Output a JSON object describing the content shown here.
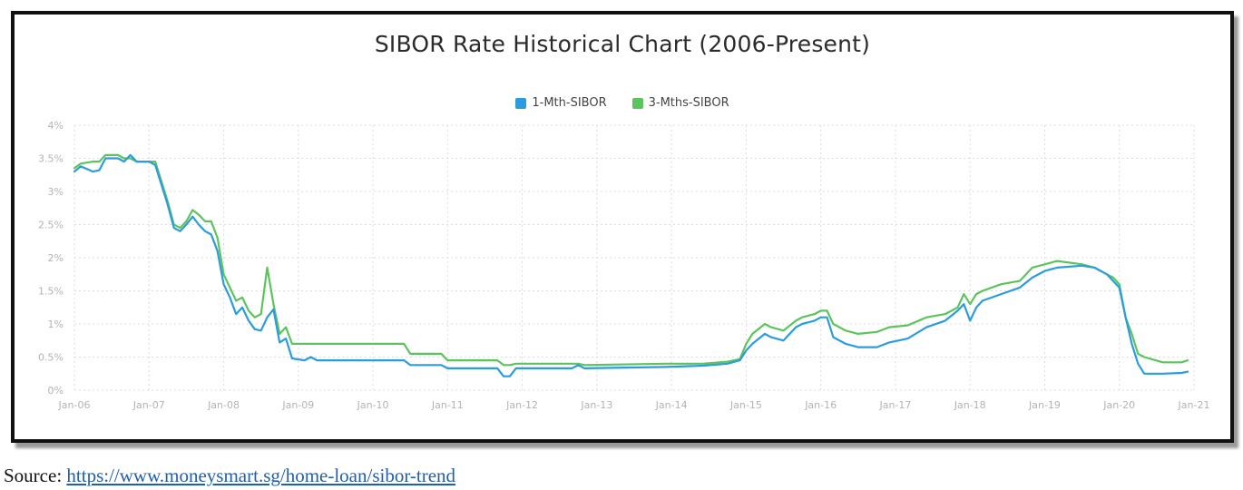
{
  "source": {
    "prefix": "Source: ",
    "link_text": "https://www.moneysmart.sg/home-loan/sibor-trend"
  },
  "chart_data": {
    "type": "line",
    "title": "SIBOR Rate Historical Chart (2006-Present)",
    "xlabel": "",
    "ylabel": "",
    "ylim": [
      0,
      4
    ],
    "xlim": [
      "2006-01",
      "2021-01"
    ],
    "grid": true,
    "legend_position": "top-center",
    "y_ticks": [
      "0%",
      "0.5%",
      "1%",
      "1.5%",
      "2%",
      "2.5%",
      "3%",
      "3.5%",
      "4%"
    ],
    "x_ticks": [
      "Jan-06",
      "Jan-07",
      "Jan-08",
      "Jan-09",
      "Jan-10",
      "Jan-11",
      "Jan-12",
      "Jan-13",
      "Jan-14",
      "Jan-15",
      "Jan-16",
      "Jan-17",
      "Jan-18",
      "Jan-19",
      "Jan-20",
      "Jan-21"
    ],
    "series": [
      {
        "name": "1-Mth-SIBOR",
        "color": "#2b9cdd",
        "points": [
          [
            "2006-01",
            3.3
          ],
          [
            "2006-02",
            3.38
          ],
          [
            "2006-04",
            3.3
          ],
          [
            "2006-05",
            3.32
          ],
          [
            "2006-06",
            3.5
          ],
          [
            "2006-08",
            3.5
          ],
          [
            "2006-09",
            3.45
          ],
          [
            "2006-10",
            3.55
          ],
          [
            "2006-11",
            3.45
          ],
          [
            "2007-01",
            3.45
          ],
          [
            "2007-02",
            3.4
          ],
          [
            "2007-03",
            3.1
          ],
          [
            "2007-04",
            2.8
          ],
          [
            "2007-05",
            2.45
          ],
          [
            "2007-06",
            2.4
          ],
          [
            "2007-07",
            2.5
          ],
          [
            "2007-08",
            2.62
          ],
          [
            "2007-09",
            2.5
          ],
          [
            "2007-10",
            2.4
          ],
          [
            "2007-11",
            2.35
          ],
          [
            "2007-12",
            2.1
          ],
          [
            "2008-01",
            1.6
          ],
          [
            "2008-02",
            1.4
          ],
          [
            "2008-03",
            1.15
          ],
          [
            "2008-04",
            1.25
          ],
          [
            "2008-05",
            1.05
          ],
          [
            "2008-06",
            0.92
          ],
          [
            "2008-07",
            0.9
          ],
          [
            "2008-08",
            1.1
          ],
          [
            "2008-09",
            1.22
          ],
          [
            "2008-10",
            0.72
          ],
          [
            "2008-11",
            0.78
          ],
          [
            "2008-12",
            0.48
          ],
          [
            "2009-02",
            0.45
          ],
          [
            "2009-03",
            0.5
          ],
          [
            "2009-04",
            0.45
          ],
          [
            "2009-12",
            0.45
          ],
          [
            "2010-06",
            0.45
          ],
          [
            "2010-07",
            0.38
          ],
          [
            "2010-12",
            0.38
          ],
          [
            "2011-01",
            0.33
          ],
          [
            "2011-09",
            0.33
          ],
          [
            "2011-10",
            0.21
          ],
          [
            "2011-11",
            0.21
          ],
          [
            "2011-12",
            0.33
          ],
          [
            "2012-09",
            0.33
          ],
          [
            "2012-10",
            0.38
          ],
          [
            "2012-11",
            0.33
          ],
          [
            "2013-12",
            0.35
          ],
          [
            "2014-06",
            0.37
          ],
          [
            "2014-10",
            0.4
          ],
          [
            "2014-12",
            0.45
          ],
          [
            "2015-01",
            0.6
          ],
          [
            "2015-02",
            0.7
          ],
          [
            "2015-04",
            0.85
          ],
          [
            "2015-05",
            0.8
          ],
          [
            "2015-07",
            0.75
          ],
          [
            "2015-09",
            0.95
          ],
          [
            "2015-10",
            1.0
          ],
          [
            "2015-12",
            1.05
          ],
          [
            "2016-01",
            1.1
          ],
          [
            "2016-02",
            1.1
          ],
          [
            "2016-03",
            0.8
          ],
          [
            "2016-05",
            0.7
          ],
          [
            "2016-07",
            0.65
          ],
          [
            "2016-10",
            0.65
          ],
          [
            "2016-12",
            0.72
          ],
          [
            "2017-03",
            0.78
          ],
          [
            "2017-06",
            0.95
          ],
          [
            "2017-09",
            1.05
          ],
          [
            "2017-11",
            1.2
          ],
          [
            "2017-12",
            1.3
          ],
          [
            "2018-01",
            1.05
          ],
          [
            "2018-02",
            1.25
          ],
          [
            "2018-03",
            1.35
          ],
          [
            "2018-06",
            1.45
          ],
          [
            "2018-09",
            1.55
          ],
          [
            "2018-11",
            1.7
          ],
          [
            "2019-01",
            1.8
          ],
          [
            "2019-03",
            1.85
          ],
          [
            "2019-07",
            1.88
          ],
          [
            "2019-09",
            1.85
          ],
          [
            "2019-11",
            1.75
          ],
          [
            "2019-12",
            1.65
          ],
          [
            "2020-01",
            1.55
          ],
          [
            "2020-02",
            1.1
          ],
          [
            "2020-03",
            0.7
          ],
          [
            "2020-04",
            0.4
          ],
          [
            "2020-05",
            0.25
          ],
          [
            "2020-08",
            0.25
          ],
          [
            "2020-11",
            0.26
          ],
          [
            "2020-12",
            0.28
          ]
        ]
      },
      {
        "name": "3-Mths-SIBOR",
        "color": "#5cc45c",
        "points": [
          [
            "2006-01",
            3.35
          ],
          [
            "2006-02",
            3.42
          ],
          [
            "2006-04",
            3.45
          ],
          [
            "2006-05",
            3.45
          ],
          [
            "2006-06",
            3.55
          ],
          [
            "2006-08",
            3.55
          ],
          [
            "2006-09",
            3.5
          ],
          [
            "2006-10",
            3.5
          ],
          [
            "2006-11",
            3.45
          ],
          [
            "2007-01",
            3.45
          ],
          [
            "2007-02",
            3.45
          ],
          [
            "2007-03",
            3.15
          ],
          [
            "2007-04",
            2.85
          ],
          [
            "2007-05",
            2.5
          ],
          [
            "2007-06",
            2.45
          ],
          [
            "2007-07",
            2.55
          ],
          [
            "2007-08",
            2.72
          ],
          [
            "2007-09",
            2.65
          ],
          [
            "2007-10",
            2.55
          ],
          [
            "2007-11",
            2.55
          ],
          [
            "2007-12",
            2.3
          ],
          [
            "2008-01",
            1.75
          ],
          [
            "2008-02",
            1.55
          ],
          [
            "2008-03",
            1.35
          ],
          [
            "2008-04",
            1.4
          ],
          [
            "2008-05",
            1.2
          ],
          [
            "2008-06",
            1.1
          ],
          [
            "2008-07",
            1.15
          ],
          [
            "2008-08",
            1.85
          ],
          [
            "2008-09",
            1.3
          ],
          [
            "2008-10",
            0.85
          ],
          [
            "2008-11",
            0.95
          ],
          [
            "2008-12",
            0.7
          ],
          [
            "2009-02",
            0.7
          ],
          [
            "2009-03",
            0.7
          ],
          [
            "2009-04",
            0.7
          ],
          [
            "2009-12",
            0.7
          ],
          [
            "2010-06",
            0.7
          ],
          [
            "2010-07",
            0.55
          ],
          [
            "2010-12",
            0.55
          ],
          [
            "2011-01",
            0.45
          ],
          [
            "2011-09",
            0.45
          ],
          [
            "2011-10",
            0.38
          ],
          [
            "2011-11",
            0.38
          ],
          [
            "2011-12",
            0.4
          ],
          [
            "2012-09",
            0.4
          ],
          [
            "2012-10",
            0.4
          ],
          [
            "2012-11",
            0.38
          ],
          [
            "2013-12",
            0.4
          ],
          [
            "2014-06",
            0.4
          ],
          [
            "2014-10",
            0.43
          ],
          [
            "2014-12",
            0.47
          ],
          [
            "2015-01",
            0.7
          ],
          [
            "2015-02",
            0.85
          ],
          [
            "2015-04",
            1.0
          ],
          [
            "2015-05",
            0.95
          ],
          [
            "2015-07",
            0.9
          ],
          [
            "2015-09",
            1.05
          ],
          [
            "2015-10",
            1.1
          ],
          [
            "2015-12",
            1.15
          ],
          [
            "2016-01",
            1.2
          ],
          [
            "2016-02",
            1.2
          ],
          [
            "2016-03",
            1.0
          ],
          [
            "2016-05",
            0.9
          ],
          [
            "2016-07",
            0.85
          ],
          [
            "2016-10",
            0.88
          ],
          [
            "2016-12",
            0.95
          ],
          [
            "2017-03",
            0.98
          ],
          [
            "2017-06",
            1.1
          ],
          [
            "2017-09",
            1.15
          ],
          [
            "2017-11",
            1.25
          ],
          [
            "2017-12",
            1.45
          ],
          [
            "2018-01",
            1.3
          ],
          [
            "2018-02",
            1.45
          ],
          [
            "2018-03",
            1.5
          ],
          [
            "2018-06",
            1.6
          ],
          [
            "2018-09",
            1.65
          ],
          [
            "2018-11",
            1.85
          ],
          [
            "2019-01",
            1.9
          ],
          [
            "2019-03",
            1.95
          ],
          [
            "2019-07",
            1.9
          ],
          [
            "2019-09",
            1.85
          ],
          [
            "2019-11",
            1.75
          ],
          [
            "2019-12",
            1.7
          ],
          [
            "2020-01",
            1.6
          ],
          [
            "2020-02",
            1.1
          ],
          [
            "2020-03",
            0.85
          ],
          [
            "2020-04",
            0.55
          ],
          [
            "2020-05",
            0.5
          ],
          [
            "2020-08",
            0.42
          ],
          [
            "2020-11",
            0.42
          ],
          [
            "2020-12",
            0.45
          ]
        ]
      }
    ]
  }
}
